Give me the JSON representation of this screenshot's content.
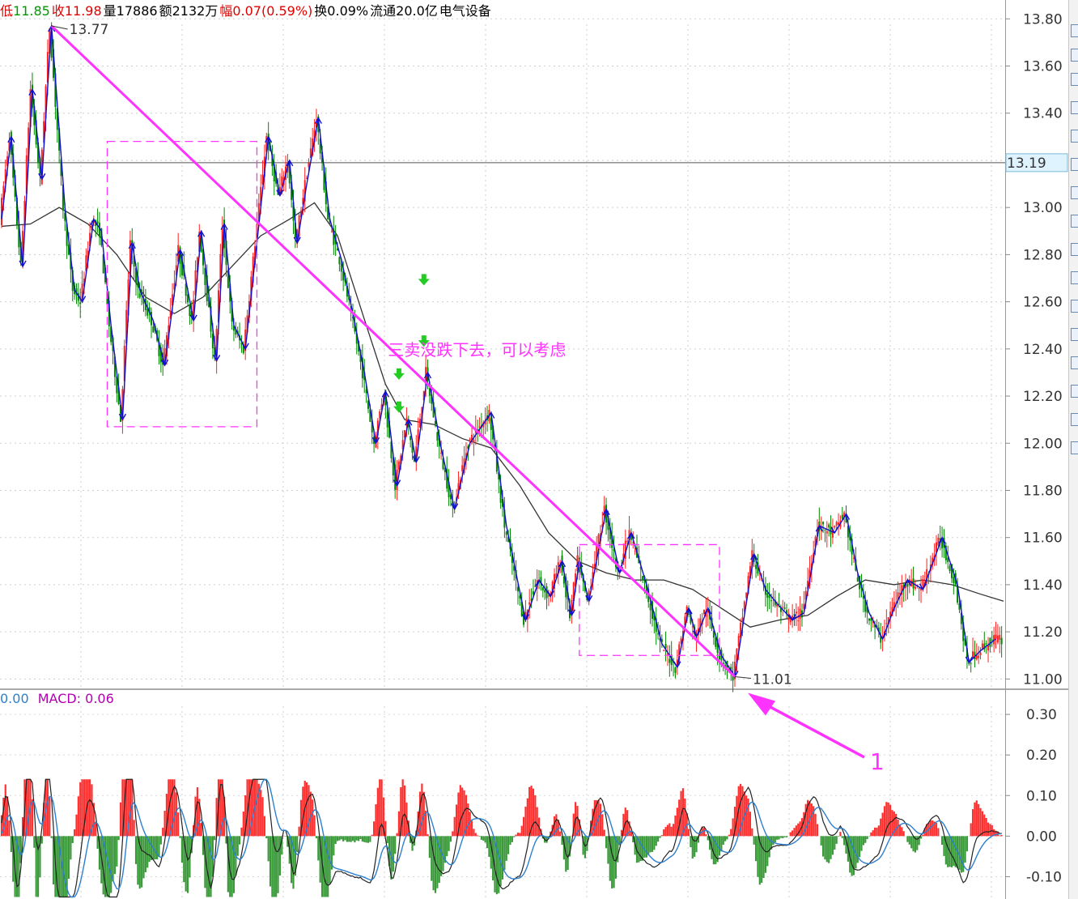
{
  "info_bar": [
    {
      "label": "低",
      "value": "11.85",
      "label_color": "#e00000",
      "value_color": "#009900"
    },
    {
      "label": "收",
      "value": "11.98",
      "label_color": "#e00000",
      "value_color": "#e00000"
    },
    {
      "label": "量",
      "value": "17886",
      "label_color": "#000000",
      "value_color": "#000000"
    },
    {
      "label": "额",
      "value": "2132万",
      "label_color": "#000000",
      "value_color": "#000000"
    },
    {
      "label": "幅",
      "value": "0.07(0.59%)",
      "label_color": "#e00000",
      "value_color": "#e00000"
    },
    {
      "label": "换",
      "value": "0.09%",
      "label_color": "#000000",
      "value_color": "#000000"
    },
    {
      "label": "流通",
      "value": "20.0亿",
      "label_color": "#000000",
      "value_color": "#000000"
    },
    {
      "label": "",
      "value": "电气设备",
      "label_color": "#000000",
      "value_color": "#000000"
    }
  ],
  "macd_header": {
    "dif_value": "0.00",
    "macd_label": "MACD: 0.06"
  },
  "price_chart": {
    "type": "line",
    "y_ticks": [
      "13.80",
      "13.60",
      "13.40",
      "13.20",
      "13.00",
      "12.80",
      "12.60",
      "12.40",
      "12.20",
      "12.00",
      "11.80",
      "11.60",
      "11.40",
      "11.20",
      "11.00"
    ],
    "ylim": [
      10.96,
      13.88
    ],
    "current_price": "13.19",
    "current_price_value": 13.19,
    "high_label": "13.77",
    "high_value": 13.77,
    "low_label": "11.01",
    "low_value": 11.01,
    "annotation_text": "三卖没跌下去，可以考虑",
    "arrow_label": "1",
    "colors": {
      "up": "#ff2020",
      "down": "#008800",
      "zigzag": "#1010cc",
      "trend": "#ff33ff",
      "ma": "#333333",
      "signal": "#22cc22"
    },
    "zigzag": [
      [
        0,
        12.95
      ],
      [
        5,
        13.3
      ],
      [
        11,
        12.75
      ],
      [
        16,
        13.5
      ],
      [
        21,
        13.12
      ],
      [
        26,
        13.77
      ],
      [
        33,
        13.0
      ],
      [
        38,
        12.65
      ],
      [
        42,
        12.6
      ],
      [
        48,
        12.95
      ],
      [
        52,
        12.9
      ],
      [
        57,
        12.5
      ],
      [
        63,
        12.1
      ],
      [
        68,
        12.85
      ],
      [
        72,
        12.65
      ],
      [
        79,
        12.52
      ],
      [
        85,
        12.33
      ],
      [
        93,
        12.82
      ],
      [
        100,
        12.52
      ],
      [
        104,
        12.9
      ],
      [
        112,
        12.35
      ],
      [
        116,
        12.93
      ],
      [
        121,
        12.5
      ],
      [
        127,
        12.4
      ],
      [
        133,
        12.85
      ],
      [
        139,
        13.3
      ],
      [
        145,
        13.05
      ],
      [
        150,
        13.2
      ],
      [
        154,
        12.85
      ],
      [
        159,
        13.1
      ],
      [
        165,
        13.38
      ],
      [
        171,
        12.95
      ],
      [
        177,
        12.78
      ],
      [
        183,
        12.55
      ],
      [
        189,
        12.3
      ],
      [
        195,
        12.0
      ],
      [
        200,
        12.22
      ],
      [
        206,
        11.82
      ],
      [
        212,
        12.1
      ],
      [
        216,
        11.92
      ],
      [
        222,
        12.3
      ],
      [
        229,
        11.98
      ],
      [
        236,
        11.72
      ],
      [
        244,
        12.0
      ],
      [
        255,
        12.13
      ],
      [
        263,
        11.65
      ],
      [
        273,
        11.25
      ],
      [
        280,
        11.42
      ],
      [
        286,
        11.35
      ],
      [
        292,
        11.5
      ],
      [
        297,
        11.27
      ],
      [
        301,
        11.5
      ],
      [
        306,
        11.33
      ],
      [
        315,
        11.72
      ],
      [
        322,
        11.45
      ],
      [
        328,
        11.62
      ],
      [
        336,
        11.4
      ],
      [
        344,
        11.15
      ],
      [
        352,
        11.05
      ],
      [
        358,
        11.3
      ],
      [
        362,
        11.18
      ],
      [
        368,
        11.3
      ],
      [
        375,
        11.1
      ],
      [
        382,
        11.01
      ],
      [
        392,
        11.53
      ],
      [
        398,
        11.38
      ],
      [
        404,
        11.32
      ],
      [
        412,
        11.25
      ],
      [
        418,
        11.28
      ],
      [
        426,
        11.65
      ],
      [
        434,
        11.62
      ],
      [
        440,
        11.7
      ],
      [
        446,
        11.45
      ],
      [
        452,
        11.28
      ],
      [
        459,
        11.17
      ],
      [
        465,
        11.3
      ],
      [
        472,
        11.42
      ],
      [
        480,
        11.38
      ],
      [
        490,
        11.6
      ],
      [
        498,
        11.4
      ],
      [
        504,
        11.07
      ],
      [
        510,
        11.12
      ],
      [
        518,
        11.17
      ]
    ],
    "ma": [
      [
        0,
        12.92
      ],
      [
        15,
        12.93
      ],
      [
        30,
        13.0
      ],
      [
        45,
        12.93
      ],
      [
        60,
        12.8
      ],
      [
        75,
        12.62
      ],
      [
        90,
        12.55
      ],
      [
        105,
        12.62
      ],
      [
        120,
        12.75
      ],
      [
        135,
        12.88
      ],
      [
        150,
        12.95
      ],
      [
        163,
        13.02
      ],
      [
        175,
        12.88
      ],
      [
        190,
        12.5
      ],
      [
        200,
        12.25
      ],
      [
        210,
        12.1
      ],
      [
        225,
        12.08
      ],
      [
        240,
        12.02
      ],
      [
        255,
        11.98
      ],
      [
        270,
        11.82
      ],
      [
        285,
        11.62
      ],
      [
        300,
        11.5
      ],
      [
        315,
        11.45
      ],
      [
        330,
        11.42
      ],
      [
        345,
        11.42
      ],
      [
        360,
        11.38
      ],
      [
        375,
        11.3
      ],
      [
        390,
        11.22
      ],
      [
        405,
        11.25
      ],
      [
        420,
        11.27
      ],
      [
        435,
        11.35
      ],
      [
        450,
        11.42
      ],
      [
        465,
        11.4
      ],
      [
        480,
        11.42
      ],
      [
        495,
        11.4
      ],
      [
        510,
        11.36
      ],
      [
        522,
        11.33
      ]
    ],
    "trendlines": [
      [
        [
          26,
          13.77
        ],
        [
          382,
          11.01
        ]
      ]
    ],
    "boxes": [
      [
        [
          55,
          13.28
        ],
        [
          133,
          12.07
        ]
      ],
      [
        [
          301,
          11.57
        ],
        [
          374,
          11.1
        ]
      ]
    ],
    "signals": [
      [
        220,
        12.69
      ],
      [
        220,
        12.43
      ],
      [
        207,
        12.29
      ],
      [
        207,
        12.15
      ]
    ]
  },
  "macd_chart": {
    "type": "bar",
    "y_ticks": [
      "0.30",
      "0.20",
      "0.10",
      "0.00",
      "-0.10"
    ],
    "ylim": [
      -0.155,
      0.36
    ],
    "colors": {
      "up": "#ff3030",
      "down": "#3a9a3a",
      "dif": "#222222",
      "dea": "#2d7fd0"
    }
  }
}
